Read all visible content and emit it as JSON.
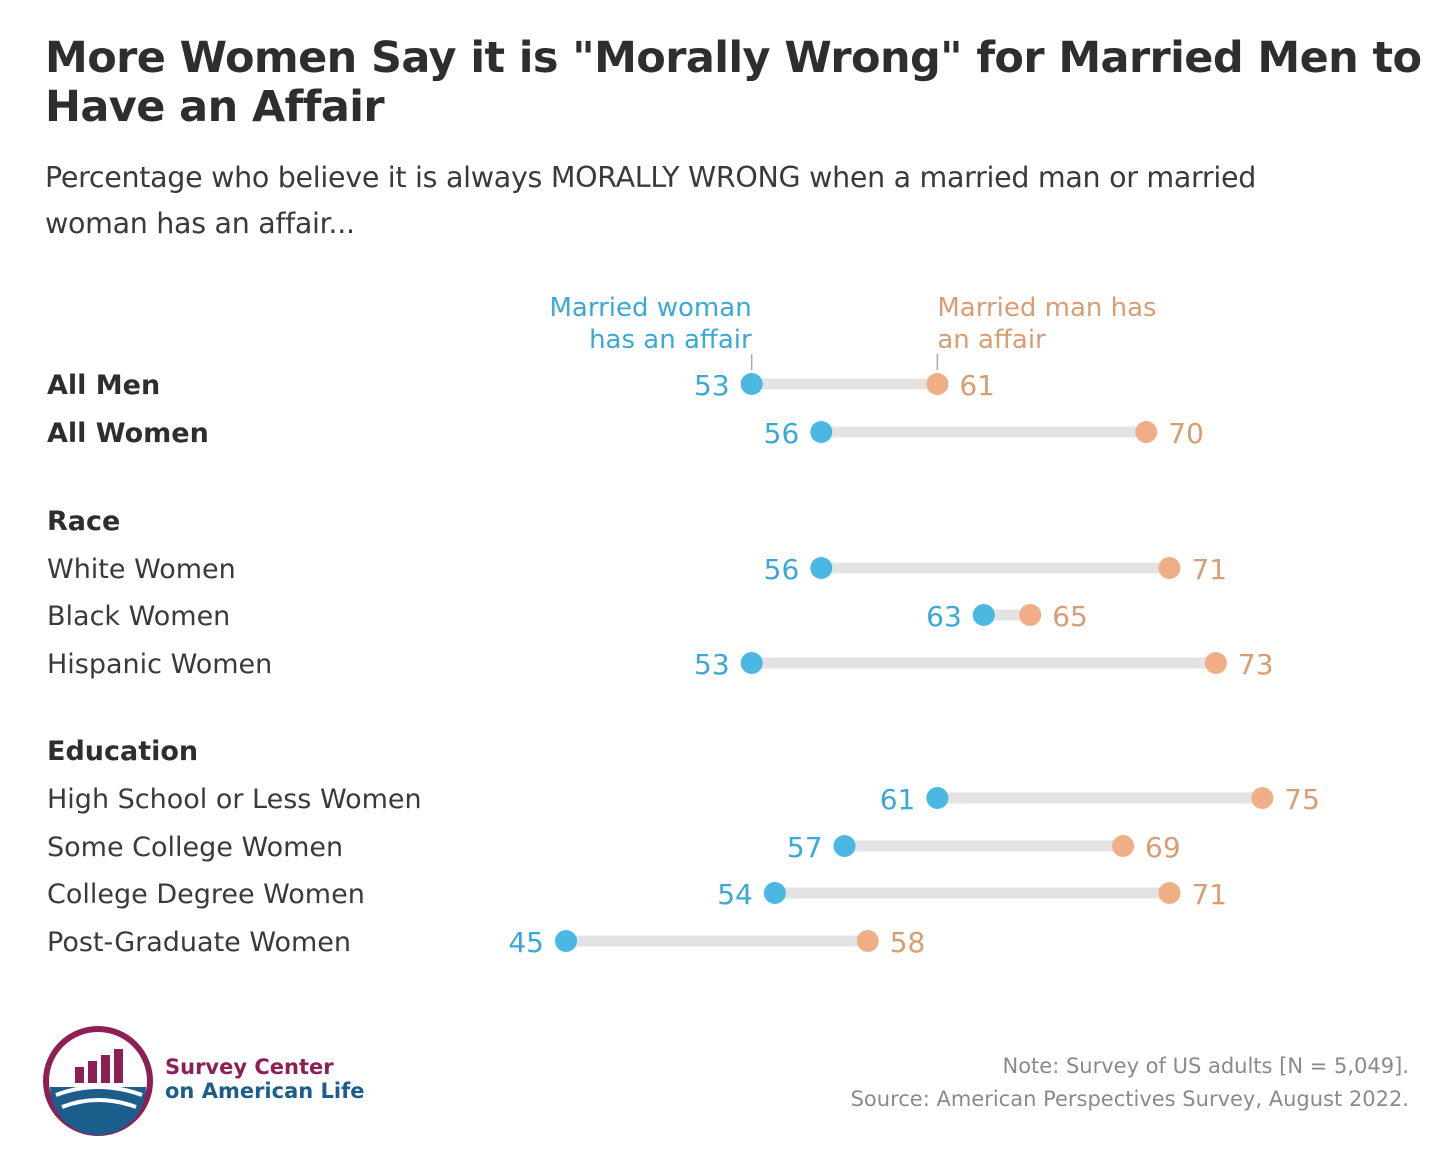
{
  "title": "More Women Say it is \"Morally Wrong\" for Married Men to Have an Affair",
  "subtitle": "Percentage who believe it is always MORALLY WRONG when a married man or married woman has an affair...",
  "colors": {
    "woman_series": "#4ab8e3",
    "man_series": "#efae86",
    "connector": "#e3e3e3",
    "woman_label": "#3aa9d8",
    "man_label": "#d99d74"
  },
  "chart_data": {
    "type": "dumbbell",
    "series": [
      {
        "name": "Married woman has an affair",
        "color": "#4ab8e3"
      },
      {
        "name": "Married man has an affair",
        "color": "#efae86"
      }
    ],
    "legend_lines": {
      "woman": [
        "Married woman",
        "has an affair"
      ],
      "man": [
        "Married man has",
        "an affair"
      ]
    },
    "groups": [
      {
        "label": "",
        "rows": [
          {
            "label": "All Men",
            "woman": 53,
            "man": 61,
            "bold": true
          },
          {
            "label": "All Women",
            "woman": 56,
            "man": 70,
            "bold": true
          }
        ]
      },
      {
        "label": "Race",
        "rows": [
          {
            "label": "White Women",
            "woman": 56,
            "man": 71
          },
          {
            "label": "Black Women",
            "woman": 63,
            "man": 65
          },
          {
            "label": "Hispanic Women",
            "woman": 53,
            "man": 73
          }
        ]
      },
      {
        "label": "Education",
        "rows": [
          {
            "label": "High School or Less Women",
            "woman": 61,
            "man": 75
          },
          {
            "label": "Some College Women",
            "woman": 57,
            "man": 69
          },
          {
            "label": "College Degree Women",
            "woman": 54,
            "man": 71
          },
          {
            "label": "Post-Graduate Women",
            "woman": 45,
            "man": 58
          }
        ]
      }
    ]
  },
  "footer": {
    "note": "Note: Survey of US adults [N = 5,049].",
    "source": "Source: American Perspectives Survey, August 2022."
  },
  "logo": {
    "line1": "Survey Center",
    "line2": "on American Life"
  }
}
